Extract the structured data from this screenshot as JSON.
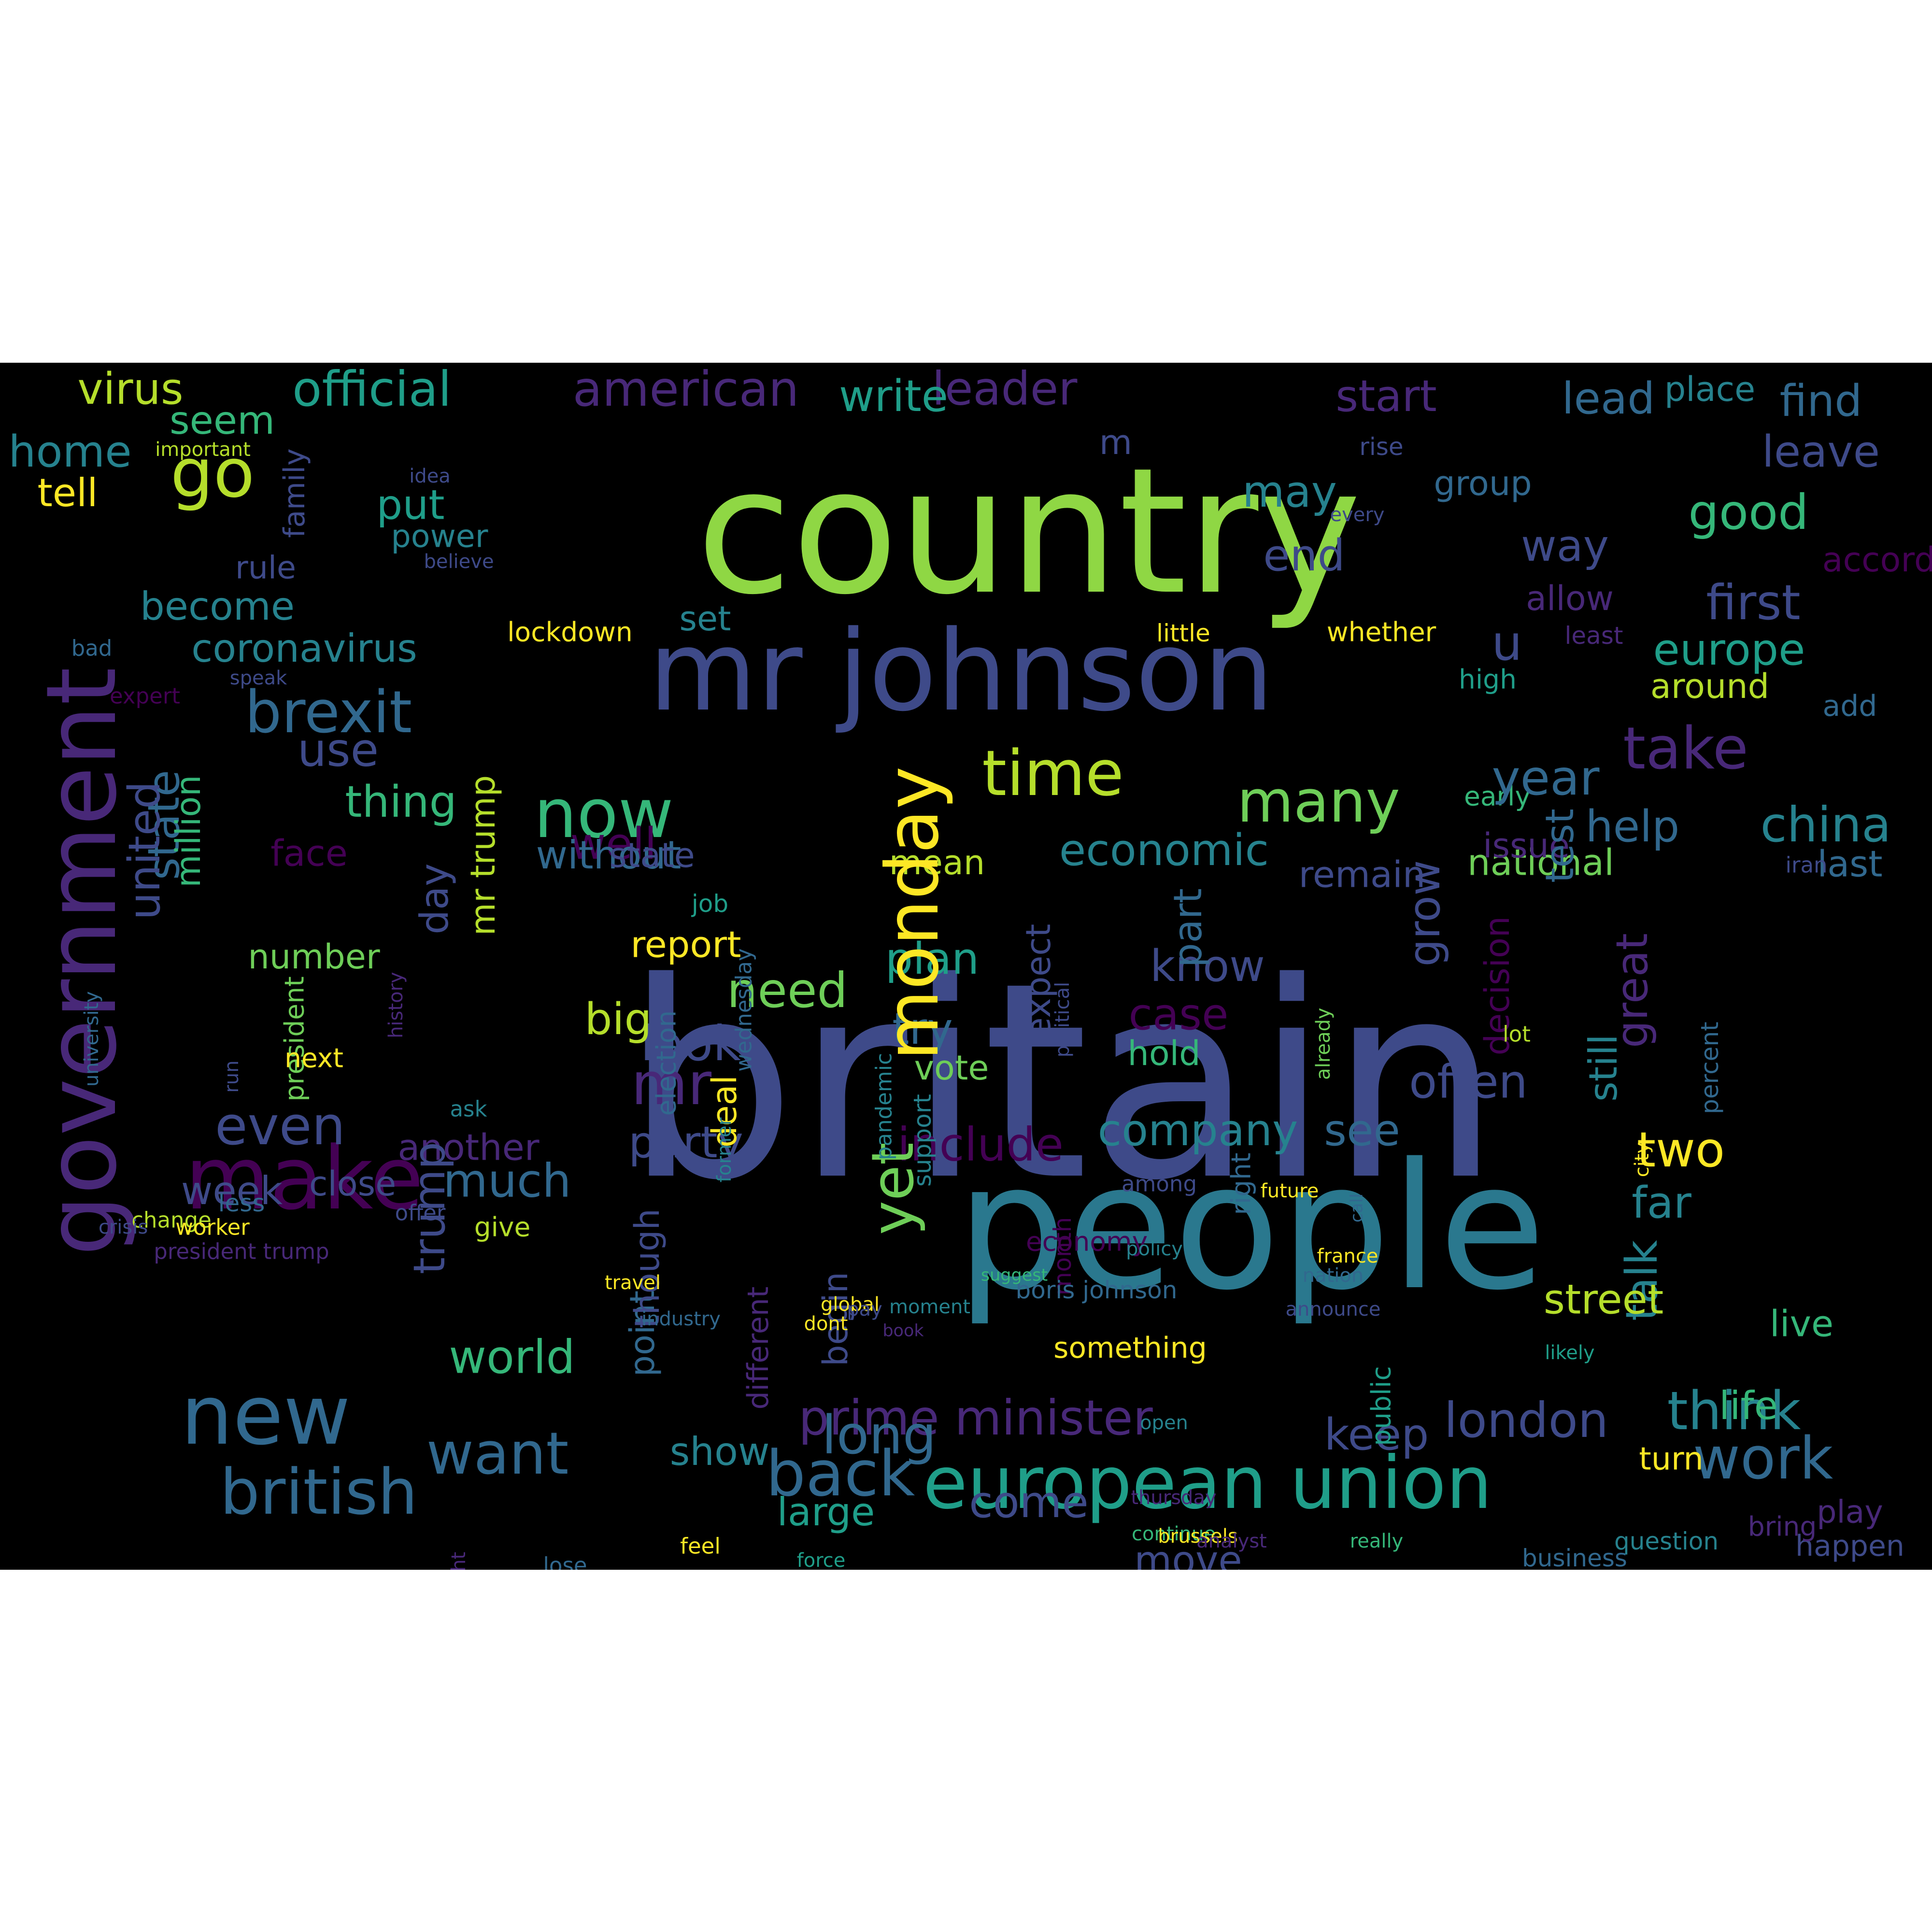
{
  "palette": {
    "background": "#000000",
    "colors": [
      "#440154",
      "#482878",
      "#3e4a89",
      "#31688e",
      "#26828e",
      "#1f9e89",
      "#35b779",
      "#6ece58",
      "#b5de2b",
      "#fde725"
    ]
  },
  "words": [
    {
      "text": "britain",
      "color": "#3e4a89",
      "vertical": false
    },
    {
      "text": "country",
      "color": "#8fd744",
      "vertical": false
    },
    {
      "text": "people",
      "color": "#2a788e",
      "vertical": false
    },
    {
      "text": "mr johnson",
      "color": "#3e4a89",
      "vertical": false
    },
    {
      "text": "government",
      "color": "#482878",
      "vertical": true
    },
    {
      "text": "make",
      "color": "#440154",
      "vertical": false
    },
    {
      "text": "new",
      "color": "#31688e",
      "vertical": false
    },
    {
      "text": "european union",
      "color": "#1f9e89",
      "vertical": false
    },
    {
      "text": "go",
      "color": "#b5de2b",
      "vertical": false
    },
    {
      "text": "brexit",
      "color": "#31688e",
      "vertical": false
    },
    {
      "text": "british",
      "color": "#31688e",
      "vertical": false
    },
    {
      "text": "now",
      "color": "#35b779",
      "vertical": false
    },
    {
      "text": "time",
      "color": "#b5de2b",
      "vertical": false
    },
    {
      "text": "many",
      "color": "#6ece58",
      "vertical": false
    },
    {
      "text": "take",
      "color": "#482878",
      "vertical": false
    },
    {
      "text": "prime minister",
      "color": "#482878",
      "vertical": false
    },
    {
      "text": "work",
      "color": "#31688e",
      "vertical": false
    },
    {
      "text": "official",
      "color": "#1f9e89",
      "vertical": false
    },
    {
      "text": "american",
      "color": "#482878",
      "vertical": false
    },
    {
      "text": "virus",
      "color": "#b5de2b",
      "vertical": false
    },
    {
      "text": "leader",
      "color": "#482878",
      "vertical": false
    },
    {
      "text": "write",
      "color": "#1f9e89",
      "vertical": false
    },
    {
      "text": "start",
      "color": "#482878",
      "vertical": false
    },
    {
      "text": "lead",
      "color": "#31688e",
      "vertical": false
    },
    {
      "text": "place",
      "color": "#26828e",
      "vertical": false
    },
    {
      "text": "find",
      "color": "#31688e",
      "vertical": false
    },
    {
      "text": "leave",
      "color": "#3e4a89",
      "vertical": false
    },
    {
      "text": "home",
      "color": "#26828e",
      "vertical": false
    },
    {
      "text": "seem",
      "color": "#35b779",
      "vertical": false
    },
    {
      "text": "important",
      "color": "#b5de2b",
      "vertical": false
    },
    {
      "text": "tell",
      "color": "#fde725",
      "vertical": false
    },
    {
      "text": "put",
      "color": "#1f9e89",
      "vertical": false
    },
    {
      "text": "power",
      "color": "#26828e",
      "vertical": false
    },
    {
      "text": "rule",
      "color": "#3e4a89",
      "vertical": false
    },
    {
      "text": "become",
      "color": "#26828e",
      "vertical": false
    },
    {
      "text": "coronavirus",
      "color": "#26828e",
      "vertical": false
    },
    {
      "text": "bad",
      "color": "#31688e",
      "vertical": false
    },
    {
      "text": "speak",
      "color": "#3e4a89",
      "vertical": false
    },
    {
      "text": "expert",
      "color": "#440154",
      "vertical": false
    },
    {
      "text": "even",
      "color": "#3e4a89",
      "vertical": false
    },
    {
      "text": "week",
      "color": "#3e4a89",
      "vertical": false
    },
    {
      "text": "close",
      "color": "#3e4a89",
      "vertical": false
    },
    {
      "text": "another",
      "color": "#482878",
      "vertical": false
    },
    {
      "text": "much",
      "color": "#31688e",
      "vertical": false
    },
    {
      "text": "party",
      "color": "#3e4a89",
      "vertical": false
    },
    {
      "text": "include",
      "color": "#440154",
      "vertical": false
    },
    {
      "text": "company",
      "color": "#26828e",
      "vertical": false
    },
    {
      "text": "see",
      "color": "#31688e",
      "vertical": false
    },
    {
      "text": "two",
      "color": "#fde725",
      "vertical": false
    },
    {
      "text": "far",
      "color": "#26828e",
      "vertical": false
    },
    {
      "text": "talk",
      "color": "#26828e",
      "vertical": true
    },
    {
      "text": "think",
      "color": "#26828e",
      "vertical": false
    },
    {
      "text": "life",
      "color": "#35b779",
      "vertical": false
    },
    {
      "text": "london",
      "color": "#3e4a89",
      "vertical": false
    },
    {
      "text": "keep",
      "color": "#3e4a89",
      "vertical": false
    },
    {
      "text": "live",
      "color": "#35b779",
      "vertical": false
    },
    {
      "text": "turn",
      "color": "#fde725",
      "vertical": false
    },
    {
      "text": "play",
      "color": "#482878",
      "vertical": false
    },
    {
      "text": "happen",
      "color": "#3e4a89",
      "vertical": false
    },
    {
      "text": "china",
      "color": "#26828e",
      "vertical": false
    },
    {
      "text": "help",
      "color": "#31688e",
      "vertical": false
    },
    {
      "text": "last",
      "color": "#31688e",
      "vertical": false
    },
    {
      "text": "national",
      "color": "#6ece58",
      "vertical": false
    },
    {
      "text": "iran",
      "color": "#3e4a89",
      "vertical": false
    },
    {
      "text": "economic",
      "color": "#26828e",
      "vertical": false
    },
    {
      "text": "know",
      "color": "#3e4a89",
      "vertical": false
    },
    {
      "text": "case",
      "color": "#440154",
      "vertical": false
    },
    {
      "text": "hold",
      "color": "#35b779",
      "vertical": false
    },
    {
      "text": "vote",
      "color": "#6ece58",
      "vertical": false
    },
    {
      "text": "try",
      "color": "#31688e",
      "vertical": false
    },
    {
      "text": "plan",
      "color": "#1f9e89",
      "vertical": false
    },
    {
      "text": "look",
      "color": "#3e4a89",
      "vertical": false
    },
    {
      "text": "need",
      "color": "#6ece58",
      "vertical": false
    },
    {
      "text": "big",
      "color": "#b5de2b",
      "vertical": false
    },
    {
      "text": "report",
      "color": "#fde725",
      "vertical": false
    },
    {
      "text": "job",
      "color": "#1f9e89",
      "vertical": false
    },
    {
      "text": "mr",
      "color": "#482878",
      "vertical": false
    },
    {
      "text": "mean",
      "color": "#b5de2b",
      "vertical": false
    },
    {
      "text": "well",
      "color": "#440154",
      "vertical": false
    },
    {
      "text": "remain",
      "color": "#3e4a89",
      "vertical": false
    },
    {
      "text": "issue",
      "color": "#482878",
      "vertical": false
    },
    {
      "text": "early",
      "color": "#35b779",
      "vertical": false
    },
    {
      "text": "year",
      "color": "#31688e",
      "vertical": false
    },
    {
      "text": "way",
      "color": "#3e4a89",
      "vertical": false
    },
    {
      "text": "end",
      "color": "#3e4a89",
      "vertical": false
    },
    {
      "text": "may",
      "color": "#26828e",
      "vertical": false
    },
    {
      "text": "group",
      "color": "#31688e",
      "vertical": false
    },
    {
      "text": "good",
      "color": "#35b779",
      "vertical": false
    },
    {
      "text": "accord",
      "color": "#440154",
      "vertical": false
    },
    {
      "text": "first",
      "color": "#3e4a89",
      "vertical": false
    },
    {
      "text": "allow",
      "color": "#482878",
      "vertical": false
    },
    {
      "text": "europe",
      "color": "#1f9e89",
      "vertical": false
    },
    {
      "text": "least",
      "color": "#482878",
      "vertical": false
    },
    {
      "text": "around",
      "color": "#b5de2b",
      "vertical": false
    },
    {
      "text": "add",
      "color": "#31688e",
      "vertical": false
    },
    {
      "text": "high",
      "color": "#1f9e89",
      "vertical": false
    },
    {
      "text": "u",
      "color": "#3e4a89",
      "vertical": false
    },
    {
      "text": "whether",
      "color": "#fde725",
      "vertical": false
    },
    {
      "text": "little",
      "color": "#fde725",
      "vertical": false
    },
    {
      "text": "lockdown",
      "color": "#fde725",
      "vertical": false
    },
    {
      "text": "set",
      "color": "#26828e",
      "vertical": false
    },
    {
      "text": "rise",
      "color": "#3e4a89",
      "vertical": false
    },
    {
      "text": "every",
      "color": "#3e4a89",
      "vertical": false
    },
    {
      "text": "idea",
      "color": "#3e4a89",
      "vertical": false
    },
    {
      "text": "believe",
      "color": "#3e4a89",
      "vertical": false
    },
    {
      "text": "m",
      "color": "#3e4a89",
      "vertical": false
    },
    {
      "text": "state",
      "color": "#31688e",
      "vertical": true
    },
    {
      "text": "united",
      "color": "#3e4a89",
      "vertical": true
    },
    {
      "text": "million",
      "color": "#35b779",
      "vertical": true
    },
    {
      "text": "use",
      "color": "#3e4a89",
      "vertical": false
    },
    {
      "text": "thing",
      "color": "#35b779",
      "vertical": false
    },
    {
      "text": "face",
      "color": "#440154",
      "vertical": false
    },
    {
      "text": "without",
      "color": "#31688e",
      "vertical": false
    },
    {
      "text": "state",
      "color": "#3e4a89",
      "vertical": false
    },
    {
      "text": "day",
      "color": "#3e4a89",
      "vertical": true
    },
    {
      "text": "mr trump",
      "color": "#b5de2b",
      "vertical": true
    },
    {
      "text": "family",
      "color": "#3e4a89",
      "vertical": true
    },
    {
      "text": "yet",
      "color": "#6ece58",
      "vertical": true
    },
    {
      "text": "grow",
      "color": "#3e4a89",
      "vertical": true
    },
    {
      "text": "test",
      "color": "#31688e",
      "vertical": true
    },
    {
      "text": "monday",
      "color": "#fde725",
      "vertical": true
    },
    {
      "text": "expect",
      "color": "#3e4a89",
      "vertical": true
    },
    {
      "text": "part",
      "color": "#31688e",
      "vertical": true
    },
    {
      "text": "point",
      "color": "#31688e",
      "vertical": true
    },
    {
      "text": "deal",
      "color": "#fde725",
      "vertical": true
    },
    {
      "text": "great",
      "color": "#482878",
      "vertical": true
    },
    {
      "text": "decision",
      "color": "#440154",
      "vertical": true
    },
    {
      "text": "right",
      "color": "#31688e",
      "vertical": true
    },
    {
      "text": "begin",
      "color": "#3e4a89",
      "vertical": true
    },
    {
      "text": "political",
      "color": "#3e4a89",
      "vertical": true
    },
    {
      "text": "already",
      "color": "#6ece58",
      "vertical": true
    },
    {
      "text": "call",
      "color": "#31688e",
      "vertical": true
    },
    {
      "text": "still",
      "color": "#26828e",
      "vertical": true
    },
    {
      "text": "percent",
      "color": "#31688e",
      "vertical": true
    },
    {
      "text": "city",
      "color": "#fde725",
      "vertical": true
    },
    {
      "text": "month",
      "color": "#440154",
      "vertical": true
    },
    {
      "text": "public",
      "color": "#1f9e89",
      "vertical": true
    },
    {
      "text": "pandemic",
      "color": "#26828e",
      "vertical": true
    },
    {
      "text": "election",
      "color": "#31688e",
      "vertical": true
    },
    {
      "text": "support",
      "color": "#26828e",
      "vertical": true
    },
    {
      "text": "former",
      "color": "#26828e",
      "vertical": true
    },
    {
      "text": "trump",
      "color": "#3e4a89",
      "vertical": true
    },
    {
      "text": "history",
      "color": "#482878",
      "vertical": true
    },
    {
      "text": "wednesday",
      "color": "#31688e",
      "vertical": true
    },
    {
      "text": "though",
      "color": "#3e4a89",
      "vertical": true
    },
    {
      "text": "different",
      "color": "#482878",
      "vertical": true
    },
    {
      "text": "might",
      "color": "#482878",
      "vertical": true
    },
    {
      "text": "university",
      "color": "#31688e",
      "vertical": true
    },
    {
      "text": "president",
      "color": "#6ece58",
      "vertical": true
    },
    {
      "text": "run",
      "color": "#3e4a89",
      "vertical": true
    },
    {
      "text": "ask",
      "color": "#26828e",
      "vertical": false
    },
    {
      "text": "offer",
      "color": "#3e4a89",
      "vertical": false
    },
    {
      "text": "next",
      "color": "#fde725",
      "vertical": false
    },
    {
      "text": "give",
      "color": "#b5de2b",
      "vertical": false
    },
    {
      "text": "less",
      "color": "#31688e",
      "vertical": false
    },
    {
      "text": "number",
      "color": "#6ece58",
      "vertical": false
    },
    {
      "text": "president trump",
      "color": "#482878",
      "vertical": false
    },
    {
      "text": "change",
      "color": "#b5de2b",
      "vertical": false
    },
    {
      "text": "crisis",
      "color": "#3e4a89",
      "vertical": false
    },
    {
      "text": "worker",
      "color": "#fde725",
      "vertical": false
    },
    {
      "text": "world",
      "color": "#35b779",
      "vertical": false
    },
    {
      "text": "want",
      "color": "#31688e",
      "vertical": false
    },
    {
      "text": "back",
      "color": "#31688e",
      "vertical": false
    },
    {
      "text": "long",
      "color": "#31688e",
      "vertical": false
    },
    {
      "text": "show",
      "color": "#26828e",
      "vertical": false
    },
    {
      "text": "come",
      "color": "#3e4a89",
      "vertical": false
    },
    {
      "text": "move",
      "color": "#3e4a89",
      "vertical": false
    },
    {
      "text": "business",
      "color": "#31688e",
      "vertical": false
    },
    {
      "text": "continue",
      "color": "#35b779",
      "vertical": false
    },
    {
      "text": "street",
      "color": "#b5de2b",
      "vertical": false
    },
    {
      "text": "often",
      "color": "#3e4a89",
      "vertical": false
    },
    {
      "text": "lot",
      "color": "#b5de2b",
      "vertical": false
    },
    {
      "text": "nation",
      "color": "#31688e",
      "vertical": false
    },
    {
      "text": "future",
      "color": "#fde725",
      "vertical": false
    },
    {
      "text": "france",
      "color": "#fde725",
      "vertical": false
    },
    {
      "text": "moment",
      "color": "#26828e",
      "vertical": false
    },
    {
      "text": "announce",
      "color": "#3e4a89",
      "vertical": false
    },
    {
      "text": "something",
      "color": "#fde725",
      "vertical": false
    },
    {
      "text": "boris johnson",
      "color": "#31688e",
      "vertical": false
    },
    {
      "text": "global",
      "color": "#fde725",
      "vertical": false
    },
    {
      "text": "economy",
      "color": "#440154",
      "vertical": false
    },
    {
      "text": "travel",
      "color": "#fde725",
      "vertical": false
    },
    {
      "text": "pay",
      "color": "#3e4a89",
      "vertical": false
    },
    {
      "text": "book",
      "color": "#482878",
      "vertical": false
    },
    {
      "text": "dont",
      "color": "#fde725",
      "vertical": false
    },
    {
      "text": "large",
      "color": "#1f9e89",
      "vertical": false
    },
    {
      "text": "feel",
      "color": "#fde725",
      "vertical": false
    },
    {
      "text": "lose",
      "color": "#31688e",
      "vertical": false
    },
    {
      "text": "open",
      "color": "#26828e",
      "vertical": false
    },
    {
      "text": "bring",
      "color": "#482878",
      "vertical": false
    },
    {
      "text": "force",
      "color": "#1f9e89",
      "vertical": false
    },
    {
      "text": "brussels",
      "color": "#fde725",
      "vertical": false
    },
    {
      "text": "thursday",
      "color": "#482878",
      "vertical": false
    },
    {
      "text": "analyst",
      "color": "#482878",
      "vertical": false
    },
    {
      "text": "question",
      "color": "#26828e",
      "vertical": false
    },
    {
      "text": "really",
      "color": "#35b779",
      "vertical": false
    },
    {
      "text": "likely",
      "color": "#1f9e89",
      "vertical": false
    },
    {
      "text": "policy",
      "color": "#26828e",
      "vertical": false
    },
    {
      "text": "among",
      "color": "#3e4a89",
      "vertical": false
    },
    {
      "text": "suggest",
      "color": "#35b779",
      "vertical": false
    },
    {
      "text": "industry",
      "color": "#31688e",
      "vertical": false
    }
  ]
}
